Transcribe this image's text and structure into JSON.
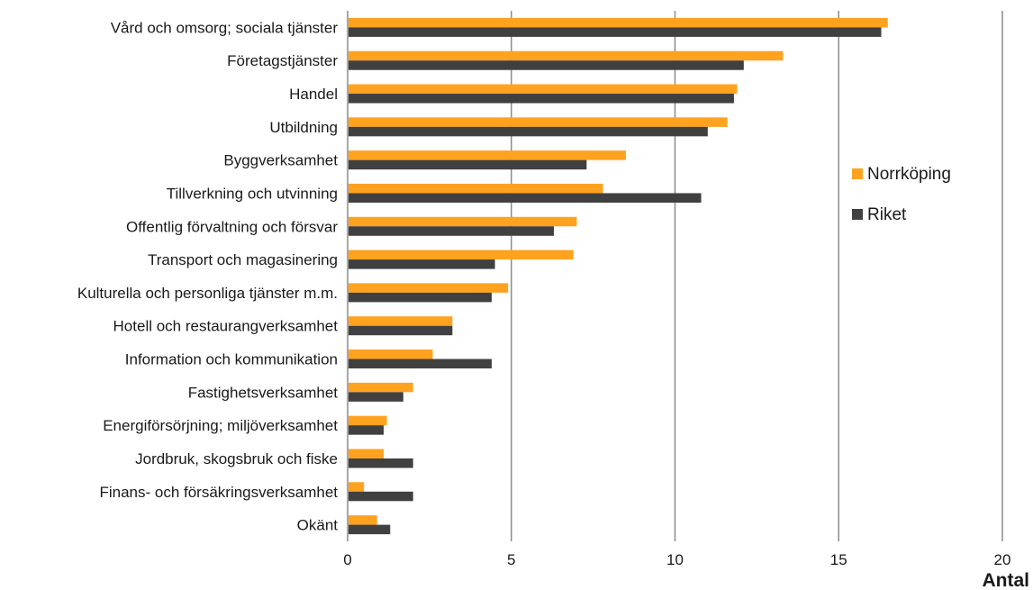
{
  "chart_data": {
    "type": "bar",
    "orientation": "horizontal",
    "categories": [
      "Vård och omsorg; sociala tjänster",
      "Företagstjänster",
      "Handel",
      "Utbildning",
      "Byggverksamhet",
      "Tillverkning och utvinning",
      "Offentlig förvaltning och försvar",
      "Transport och magasinering",
      "Kulturella och personliga tjänster m.m.",
      "Hotell och restaurangverksamhet",
      "Information och kommunikation",
      "Fastighetsverksamhet",
      "Energiförsörjning; miljöverksamhet",
      "Jordbruk, skogsbruk och fiske",
      "Finans- och försäkringsverksamhet",
      "Okänt"
    ],
    "series": [
      {
        "name": "Norrköping",
        "color": "#FFA21F",
        "values": [
          16.5,
          13.3,
          11.9,
          11.6,
          8.5,
          7.8,
          7.0,
          6.9,
          4.9,
          3.2,
          2.6,
          2.0,
          1.2,
          1.1,
          0.5,
          0.9
        ]
      },
      {
        "name": "Riket",
        "color": "#404040",
        "values": [
          16.3,
          12.1,
          11.8,
          11.0,
          7.3,
          10.8,
          6.3,
          4.5,
          4.4,
          3.2,
          4.4,
          1.7,
          1.1,
          2.0,
          2.0,
          1.3
        ]
      }
    ],
    "xlabel": "Antal",
    "xlim": [
      0,
      20
    ],
    "xticks": [
      0,
      5,
      10,
      15,
      20
    ],
    "grid": true,
    "legend_position": "right"
  }
}
